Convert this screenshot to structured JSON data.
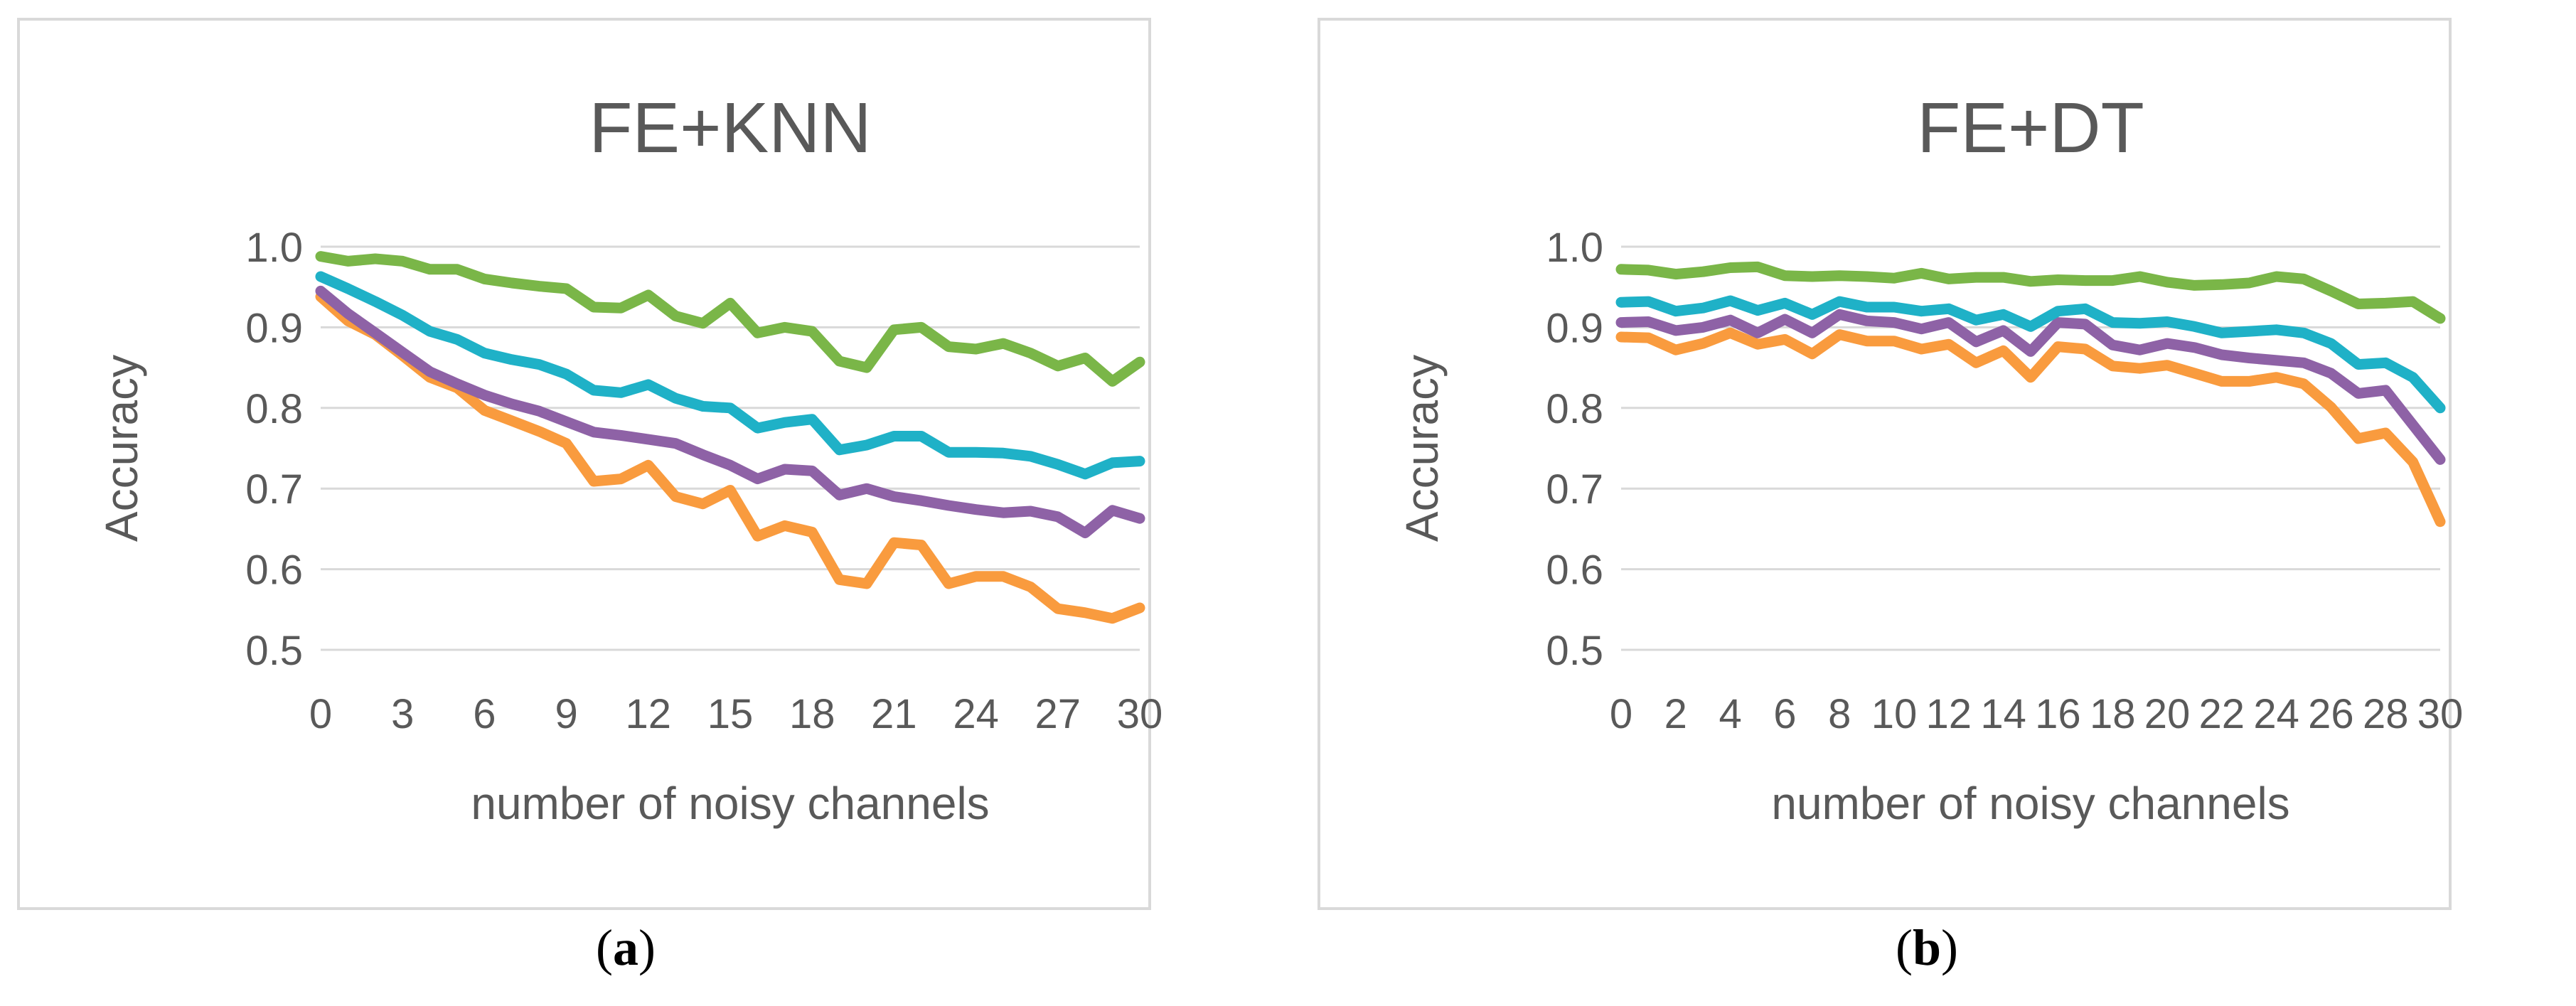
{
  "chart_data": [
    {
      "type": "line",
      "title": "FE+KNN",
      "xlabel": "number of noisy channels",
      "ylabel": "Accuracy",
      "ylim": [
        0.5,
        1.0
      ],
      "yticks": [
        "0.5",
        "0.6",
        "0.7",
        "0.8",
        "0.9",
        "1.0"
      ],
      "xlim": [
        0,
        30
      ],
      "xtick_labels": [
        "0",
        "3",
        "6",
        "9",
        "12",
        "15",
        "18",
        "21",
        "24",
        "27",
        "30"
      ],
      "xtick_values": [
        0,
        3,
        6,
        9,
        12,
        15,
        18,
        21,
        24,
        27,
        30
      ],
      "x": [
        0,
        1,
        2,
        3,
        4,
        5,
        6,
        7,
        8,
        9,
        10,
        11,
        12,
        13,
        14,
        15,
        16,
        17,
        18,
        19,
        20,
        21,
        22,
        23,
        24,
        25,
        26,
        27,
        28,
        29,
        30
      ],
      "series": [
        {
          "name": "green",
          "color": "#7ab648",
          "values": [
            0.988,
            0.982,
            0.985,
            0.982,
            0.972,
            0.972,
            0.96,
            0.955,
            0.951,
            0.948,
            0.925,
            0.924,
            0.94,
            0.914,
            0.905,
            0.93,
            0.893,
            0.9,
            0.895,
            0.858,
            0.85,
            0.897,
            0.9,
            0.876,
            0.873,
            0.88,
            0.868,
            0.852,
            0.862,
            0.833,
            0.857
          ]
        },
        {
          "name": "blue",
          "color": "#1fb1c7",
          "values": [
            0.963,
            0.948,
            0.932,
            0.915,
            0.895,
            0.885,
            0.868,
            0.86,
            0.854,
            0.842,
            0.822,
            0.819,
            0.829,
            0.812,
            0.802,
            0.8,
            0.775,
            0.782,
            0.786,
            0.748,
            0.754,
            0.765,
            0.765,
            0.745,
            0.745,
            0.744,
            0.74,
            0.73,
            0.718,
            0.732,
            0.734
          ]
        },
        {
          "name": "purple",
          "color": "#8e62a6",
          "values": [
            0.945,
            0.917,
            0.893,
            0.869,
            0.845,
            0.83,
            0.816,
            0.805,
            0.796,
            0.783,
            0.77,
            0.766,
            0.761,
            0.756,
            0.742,
            0.729,
            0.712,
            0.724,
            0.722,
            0.692,
            0.7,
            0.69,
            0.685,
            0.679,
            0.674,
            0.67,
            0.672,
            0.665,
            0.645,
            0.673,
            0.663
          ]
        },
        {
          "name": "orange",
          "color": "#f99b3e",
          "values": [
            0.938,
            0.908,
            0.891,
            0.865,
            0.838,
            0.825,
            0.797,
            0.784,
            0.771,
            0.756,
            0.709,
            0.712,
            0.729,
            0.69,
            0.681,
            0.698,
            0.641,
            0.654,
            0.646,
            0.587,
            0.582,
            0.633,
            0.63,
            0.582,
            0.591,
            0.591,
            0.578,
            0.551,
            0.546,
            0.539,
            0.552
          ]
        }
      ]
    },
    {
      "type": "line",
      "title": "FE+DT",
      "xlabel": "number of noisy channels",
      "ylabel": "Accuracy",
      "ylim": [
        0.5,
        1.0
      ],
      "yticks": [
        "0.5",
        "0.6",
        "0.7",
        "0.8",
        "0.9",
        "1.0"
      ],
      "xlim": [
        0,
        30
      ],
      "xtick_labels": [
        "0",
        "2",
        "4",
        "6",
        "8",
        "10",
        "12",
        "14",
        "16",
        "18",
        "20",
        "22",
        "24",
        "26",
        "28",
        "30"
      ],
      "xtick_values": [
        0,
        2,
        4,
        6,
        8,
        10,
        12,
        14,
        16,
        18,
        20,
        22,
        24,
        26,
        28,
        30
      ],
      "x": [
        0,
        1,
        2,
        3,
        4,
        5,
        6,
        7,
        8,
        9,
        10,
        11,
        12,
        13,
        14,
        15,
        16,
        17,
        18,
        19,
        20,
        21,
        22,
        23,
        24,
        25,
        26,
        27,
        28,
        29,
        30
      ],
      "series": [
        {
          "name": "green",
          "color": "#7ab648",
          "values": [
            0.972,
            0.971,
            0.966,
            0.969,
            0.974,
            0.975,
            0.964,
            0.963,
            0.964,
            0.963,
            0.961,
            0.967,
            0.96,
            0.962,
            0.962,
            0.957,
            0.959,
            0.958,
            0.958,
            0.963,
            0.956,
            0.952,
            0.953,
            0.955,
            0.963,
            0.96,
            0.945,
            0.929,
            0.93,
            0.932,
            0.911
          ]
        },
        {
          "name": "blue",
          "color": "#1fb1c7",
          "values": [
            0.931,
            0.932,
            0.92,
            0.924,
            0.933,
            0.921,
            0.93,
            0.916,
            0.932,
            0.925,
            0.925,
            0.92,
            0.923,
            0.909,
            0.916,
            0.901,
            0.92,
            0.923,
            0.906,
            0.905,
            0.907,
            0.901,
            0.893,
            0.895,
            0.897,
            0.893,
            0.88,
            0.854,
            0.856,
            0.838,
            0.8
          ]
        },
        {
          "name": "purple",
          "color": "#8e62a6",
          "values": [
            0.906,
            0.907,
            0.896,
            0.9,
            0.909,
            0.893,
            0.91,
            0.893,
            0.916,
            0.908,
            0.906,
            0.898,
            0.906,
            0.882,
            0.896,
            0.87,
            0.906,
            0.904,
            0.878,
            0.872,
            0.88,
            0.875,
            0.866,
            0.862,
            0.859,
            0.856,
            0.843,
            0.818,
            0.822,
            0.779,
            0.736
          ]
        },
        {
          "name": "orange",
          "color": "#f99b3e",
          "values": [
            0.888,
            0.887,
            0.872,
            0.88,
            0.893,
            0.879,
            0.885,
            0.867,
            0.891,
            0.883,
            0.883,
            0.873,
            0.879,
            0.856,
            0.871,
            0.838,
            0.876,
            0.873,
            0.852,
            0.849,
            0.853,
            0.843,
            0.833,
            0.833,
            0.838,
            0.83,
            0.801,
            0.762,
            0.769,
            0.733,
            0.659
          ]
        }
      ]
    }
  ],
  "captions": {
    "a": "a",
    "b": "b"
  }
}
